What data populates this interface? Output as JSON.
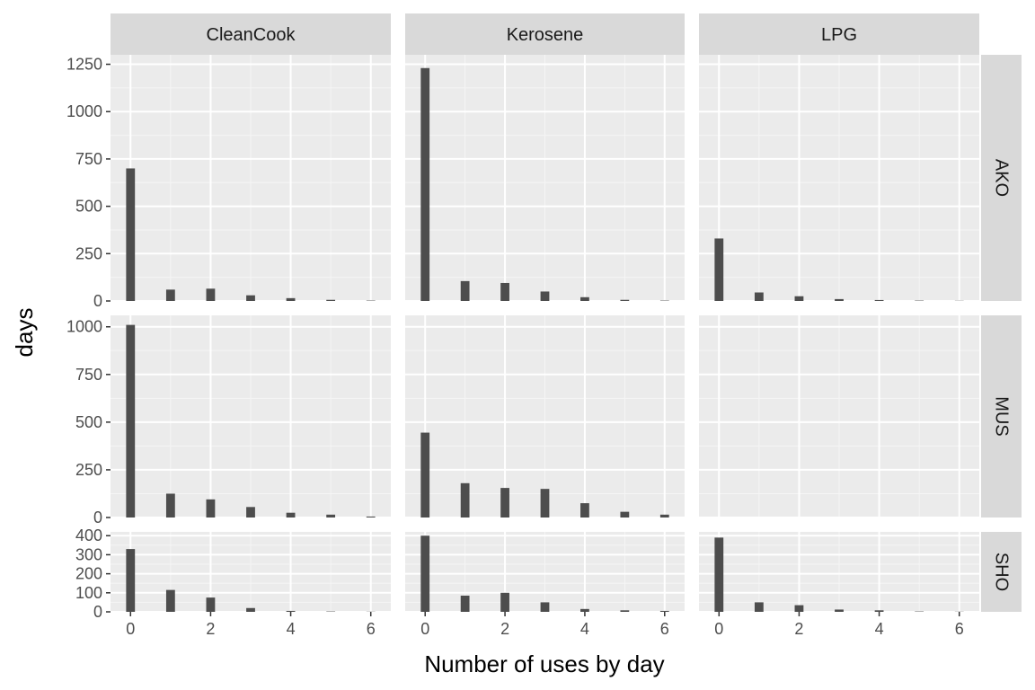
{
  "chart_data": {
    "type": "bar",
    "subtype": "faceted-histogram",
    "xlabel": "Number of uses by day",
    "ylabel": "days",
    "x_breaks": [
      0,
      2,
      4,
      6
    ],
    "xlim": [
      -0.5,
      6.5
    ],
    "columns": [
      "CleanCook",
      "Kerosene",
      "LPG"
    ],
    "rows": [
      {
        "label": "AKO",
        "ylim": [
          0,
          1300
        ],
        "y_breaks": [
          0,
          250,
          500,
          750,
          1000,
          1250
        ]
      },
      {
        "label": "MUS",
        "ylim": [
          0,
          1060
        ],
        "y_breaks": [
          0,
          250,
          500,
          750,
          1000
        ]
      },
      {
        "label": "SHO",
        "ylim": [
          0,
          420
        ],
        "y_breaks": [
          0,
          100,
          200,
          300,
          400
        ]
      }
    ],
    "bar_color": "#4d4d4d",
    "panel_background": "#ebebeb",
    "strip_background": "#d9d9d9",
    "grid": true,
    "panels": [
      {
        "row": "AKO",
        "col": "CleanCook",
        "x": [
          0,
          1,
          2,
          3,
          4,
          5,
          6
        ],
        "values": [
          700,
          60,
          65,
          30,
          15,
          6,
          2
        ]
      },
      {
        "row": "AKO",
        "col": "Kerosene",
        "x": [
          0,
          1,
          2,
          3,
          4,
          5,
          6
        ],
        "values": [
          1230,
          105,
          95,
          50,
          20,
          6,
          2
        ]
      },
      {
        "row": "AKO",
        "col": "LPG",
        "x": [
          0,
          1,
          2,
          3,
          4,
          5,
          6
        ],
        "values": [
          330,
          45,
          25,
          10,
          5,
          2,
          1
        ]
      },
      {
        "row": "MUS",
        "col": "CleanCook",
        "x": [
          0,
          1,
          2,
          3,
          4,
          5,
          6
        ],
        "values": [
          1010,
          125,
          95,
          55,
          25,
          15,
          5
        ]
      },
      {
        "row": "MUS",
        "col": "Kerosene",
        "x": [
          0,
          1,
          2,
          3,
          4,
          5,
          6
        ],
        "values": [
          445,
          180,
          155,
          150,
          75,
          30,
          15
        ]
      },
      {
        "row": "MUS",
        "col": "LPG",
        "x": [],
        "values": []
      },
      {
        "row": "SHO",
        "col": "CleanCook",
        "x": [
          0,
          1,
          2,
          3,
          4,
          5,
          6
        ],
        "values": [
          330,
          115,
          75,
          20,
          5,
          2,
          1
        ]
      },
      {
        "row": "SHO",
        "col": "Kerosene",
        "x": [
          0,
          1,
          2,
          3,
          4,
          5,
          6
        ],
        "values": [
          400,
          85,
          100,
          50,
          15,
          8,
          5
        ]
      },
      {
        "row": "SHO",
        "col": "LPG",
        "x": [
          0,
          1,
          2,
          3,
          4,
          5,
          6
        ],
        "values": [
          390,
          50,
          35,
          12,
          8,
          2,
          1
        ]
      }
    ]
  }
}
